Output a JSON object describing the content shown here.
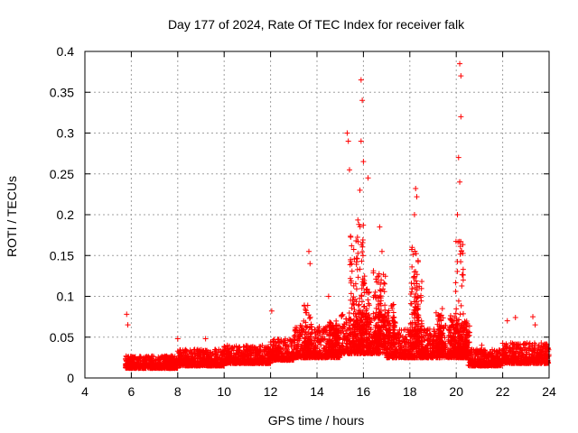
{
  "chart_data": {
    "type": "scatter",
    "title": "Day 177 of 2024, Rate Of TEC Index for receiver falk",
    "xlabel": "GPS time / hours",
    "ylabel": "ROTI / TECUs",
    "xlim": [
      4,
      24
    ],
    "ylim": [
      0,
      0.4
    ],
    "x_ticks": [
      4,
      6,
      8,
      10,
      12,
      14,
      16,
      18,
      20,
      22,
      24
    ],
    "y_ticks": [
      0,
      0.05,
      0.1,
      0.15,
      0.2,
      0.25,
      0.3,
      0.35,
      0.4
    ],
    "x_tick_labels": [
      "4",
      "6",
      "8",
      "10",
      "12",
      "14",
      "16",
      "18",
      "20",
      "22",
      "24"
    ],
    "y_tick_labels": [
      "0",
      "0.05",
      "0.1",
      "0.15",
      "0.2",
      "0.25",
      "0.3",
      "0.35",
      "0.4"
    ],
    "grid": true,
    "marker": "+",
    "color": "#ff0000",
    "x_start": 5.75,
    "series": [
      {
        "name": "ROTI",
        "notable_peaks": [
          {
            "x": 5.8,
            "y": 0.078
          },
          {
            "x": 5.85,
            "y": 0.065
          },
          {
            "x": 8.0,
            "y": 0.048
          },
          {
            "x": 9.2,
            "y": 0.048
          },
          {
            "x": 12.05,
            "y": 0.082
          },
          {
            "x": 13.5,
            "y": 0.084
          },
          {
            "x": 13.65,
            "y": 0.155
          },
          {
            "x": 13.7,
            "y": 0.14
          },
          {
            "x": 14.5,
            "y": 0.1
          },
          {
            "x": 15.3,
            "y": 0.3
          },
          {
            "x": 15.35,
            "y": 0.29
          },
          {
            "x": 15.4,
            "y": 0.255
          },
          {
            "x": 15.9,
            "y": 0.365
          },
          {
            "x": 15.95,
            "y": 0.34
          },
          {
            "x": 15.9,
            "y": 0.29
          },
          {
            "x": 16.0,
            "y": 0.265
          },
          {
            "x": 16.2,
            "y": 0.245
          },
          {
            "x": 15.85,
            "y": 0.23
          },
          {
            "x": 16.7,
            "y": 0.185
          },
          {
            "x": 16.8,
            "y": 0.155
          },
          {
            "x": 17.3,
            "y": 0.09
          },
          {
            "x": 18.25,
            "y": 0.232
          },
          {
            "x": 18.3,
            "y": 0.222
          },
          {
            "x": 18.2,
            "y": 0.2
          },
          {
            "x": 18.1,
            "y": 0.16
          },
          {
            "x": 19.4,
            "y": 0.085
          },
          {
            "x": 20.15,
            "y": 0.385
          },
          {
            "x": 20.2,
            "y": 0.37
          },
          {
            "x": 20.2,
            "y": 0.32
          },
          {
            "x": 20.1,
            "y": 0.27
          },
          {
            "x": 20.15,
            "y": 0.24
          },
          {
            "x": 20.05,
            "y": 0.2
          },
          {
            "x": 20.3,
            "y": 0.12
          },
          {
            "x": 21.1,
            "y": 0.04
          },
          {
            "x": 22.2,
            "y": 0.07
          },
          {
            "x": 22.55,
            "y": 0.074
          },
          {
            "x": 23.3,
            "y": 0.075
          },
          {
            "x": 23.4,
            "y": 0.065
          },
          {
            "x": 23.95,
            "y": 0.036
          }
        ],
        "bands": [
          {
            "x0": 5.75,
            "x1": 8.0,
            "base": 0.012,
            "spread": 0.015
          },
          {
            "x0": 8.0,
            "x1": 10.0,
            "base": 0.015,
            "spread": 0.02
          },
          {
            "x0": 10.0,
            "x1": 12.0,
            "base": 0.018,
            "spread": 0.022
          },
          {
            "x0": 12.0,
            "x1": 13.0,
            "base": 0.022,
            "spread": 0.026
          },
          {
            "x0": 13.0,
            "x1": 15.0,
            "base": 0.025,
            "spread": 0.04
          },
          {
            "x0": 15.0,
            "x1": 17.0,
            "base": 0.03,
            "spread": 0.05
          },
          {
            "x0": 17.0,
            "x1": 19.0,
            "base": 0.025,
            "spread": 0.035
          },
          {
            "x0": 19.0,
            "x1": 20.5,
            "base": 0.025,
            "spread": 0.04
          },
          {
            "x0": 20.5,
            "x1": 22.0,
            "base": 0.015,
            "spread": 0.02
          },
          {
            "x0": 22.0,
            "x1": 24.0,
            "base": 0.018,
            "spread": 0.025
          }
        ],
        "clusters": [
          {
            "x": 15.6,
            "y0": 0.04,
            "y1": 0.18
          },
          {
            "x": 15.9,
            "y0": 0.04,
            "y1": 0.2
          },
          {
            "x": 16.1,
            "y0": 0.04,
            "y1": 0.12
          },
          {
            "x": 16.6,
            "y0": 0.04,
            "y1": 0.14
          },
          {
            "x": 16.8,
            "y0": 0.04,
            "y1": 0.13
          },
          {
            "x": 17.2,
            "y0": 0.04,
            "y1": 0.09
          },
          {
            "x": 18.2,
            "y0": 0.04,
            "y1": 0.16
          },
          {
            "x": 18.35,
            "y0": 0.04,
            "y1": 0.13
          },
          {
            "x": 19.3,
            "y0": 0.03,
            "y1": 0.08
          },
          {
            "x": 19.9,
            "y0": 0.03,
            "y1": 0.08
          },
          {
            "x": 20.15,
            "y0": 0.03,
            "y1": 0.17
          },
          {
            "x": 20.4,
            "y0": 0.03,
            "y1": 0.07
          },
          {
            "x": 13.6,
            "y0": 0.03,
            "y1": 0.09
          },
          {
            "x": 14.7,
            "y0": 0.03,
            "y1": 0.07
          }
        ]
      }
    ]
  }
}
